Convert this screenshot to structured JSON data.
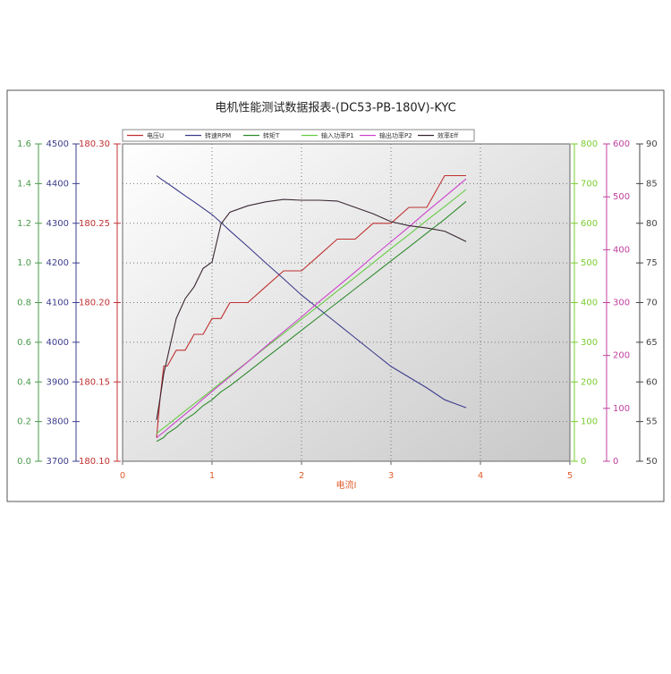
{
  "chart_data": {
    "type": "line",
    "title": "电机性能测试数据报表-(DC53-PB-180V)-KYC",
    "x_label": "电流I",
    "xlim": [
      0,
      5
    ],
    "xticks": [
      0,
      1,
      2,
      3,
      4,
      5
    ],
    "grid": true,
    "legend": "top",
    "x": [
      0.38,
      0.42,
      0.46,
      0.5,
      0.6,
      0.7,
      0.8,
      0.9,
      1.0,
      1.1,
      1.2,
      1.4,
      1.6,
      1.8,
      2.0,
      2.2,
      2.4,
      2.6,
      2.8,
      3.0,
      3.2,
      3.4,
      3.6,
      3.84
    ],
    "y_axes": [
      {
        "side": "left",
        "color": "#4a9a4a",
        "lim": [
          0,
          1.6
        ],
        "ticks": [
          {
            "value": 0,
            "label": "0.0"
          },
          0.2,
          0.4,
          0.6,
          0.8,
          {
            "value": 1,
            "label": "1.0"
          },
          1.2,
          1.4,
          1.6
        ]
      },
      {
        "side": "left",
        "color": "#3c3c8c",
        "lim": [
          3700,
          4500
        ],
        "ticks": [
          3700,
          3800,
          3900,
          4000,
          4100,
          4200,
          4300,
          4400,
          4500
        ]
      },
      {
        "side": "left",
        "color": "#c03030",
        "lim": [
          180.1,
          180.3
        ],
        "ticks": [
          {
            "value": 180.1,
            "label": "180.10"
          },
          180.15,
          {
            "value": 180.2,
            "label": "180.20"
          },
          180.25,
          {
            "value": 180.3,
            "label": "180.30"
          }
        ]
      },
      {
        "side": "right",
        "color": "#7acc30",
        "lim": [
          0,
          800
        ],
        "ticks": [
          0,
          100,
          200,
          300,
          400,
          500,
          600,
          700,
          800
        ]
      },
      {
        "side": "right",
        "color": "#c040a0",
        "lim": [
          0,
          600
        ],
        "ticks": [
          0,
          100,
          200,
          300,
          400,
          500,
          600
        ]
      },
      {
        "side": "right",
        "color": "#444444",
        "lim": [
          50,
          90
        ],
        "ticks": [
          50,
          55,
          60,
          65,
          70,
          75,
          80,
          85,
          90
        ]
      }
    ],
    "series": [
      {
        "name": "电压U",
        "color": "#c03030",
        "axis": 2,
        "values": [
          180.115,
          180.14,
          180.16,
          180.16,
          180.17,
          180.17,
          180.18,
          180.18,
          180.19,
          180.19,
          180.2,
          180.2,
          180.21,
          180.22,
          180.22,
          180.23,
          180.24,
          180.24,
          180.25,
          180.25,
          180.26,
          180.26,
          180.28,
          180.28
        ]
      },
      {
        "name": "转速RPM",
        "color": "#3c3c8c",
        "axis": 1,
        "values": [
          4420,
          4413,
          4407,
          4401,
          4385,
          4369,
          4354,
          4338,
          4322,
          4302,
          4281,
          4241,
          4200,
          4160,
          4119,
          4083,
          4047,
          4011,
          3975,
          3939,
          3912,
          3885,
          3855,
          3835
        ]
      },
      {
        "name": "转矩T",
        "color": "#2e8b2e",
        "axis": 0,
        "values": [
          0.1,
          0.11,
          0.12,
          0.14,
          0.17,
          0.21,
          0.24,
          0.28,
          0.31,
          0.35,
          0.38,
          0.45,
          0.52,
          0.59,
          0.66,
          0.73,
          0.8,
          0.87,
          0.94,
          1.01,
          1.08,
          1.15,
          1.22,
          1.31
        ]
      },
      {
        "name": "输入功率P1",
        "color": "#66cc44",
        "axis": 3,
        "values": [
          70,
          77,
          84,
          91,
          109,
          127,
          145,
          162,
          180,
          198,
          216,
          251,
          287,
          322,
          358,
          393,
          429,
          464,
          500,
          536,
          571,
          607,
          642,
          685
        ]
      },
      {
        "name": "输出功率P2",
        "color": "#cc44cc",
        "axis": 4,
        "values": [
          44,
          50,
          55,
          61,
          75,
          89,
          103,
          118,
          132,
          146,
          160,
          188,
          217,
          245,
          273,
          302,
          330,
          358,
          387,
          415,
          443,
          472,
          500,
          534
        ]
      },
      {
        "name": "效率Eff",
        "color": "#3a2634",
        "axis": 5,
        "values": [
          55.2,
          58,
          61,
          63,
          68,
          70.5,
          72,
          74.3,
          75.1,
          79.9,
          81.4,
          82.2,
          82.7,
          83,
          82.9,
          82.9,
          82.8,
          82,
          81.2,
          80.2,
          79.7,
          79.4,
          79,
          77.7
        ]
      }
    ]
  }
}
